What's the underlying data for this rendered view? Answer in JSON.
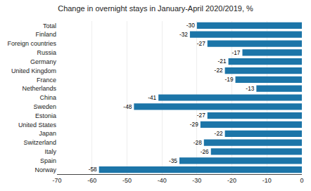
{
  "chart_data": {
    "type": "bar",
    "orientation": "horizontal",
    "title": "Change in overnight stays in January-April 2020/2019, %",
    "categories": [
      "Norway",
      "Spain",
      "Italy",
      "Switzerland",
      "Japan",
      "United States",
      "Estonia",
      "Sweden",
      "China",
      "Netherlands",
      "France",
      "United Kingdom",
      "Germany",
      "Russia",
      "Foreign countries",
      "Finland",
      "Total"
    ],
    "values": [
      -58,
      -35,
      -26,
      -28,
      -22,
      -29,
      -27,
      -48,
      -41,
      -13,
      -19,
      -22,
      -21,
      -17,
      -27,
      -32,
      -30
    ],
    "color": "#1c75a8",
    "xlim": [
      -70,
      0
    ],
    "xticks": [
      -70,
      -60,
      -50,
      -40,
      -30,
      -20,
      -10,
      0
    ],
    "grid": true,
    "data_labels": true
  }
}
